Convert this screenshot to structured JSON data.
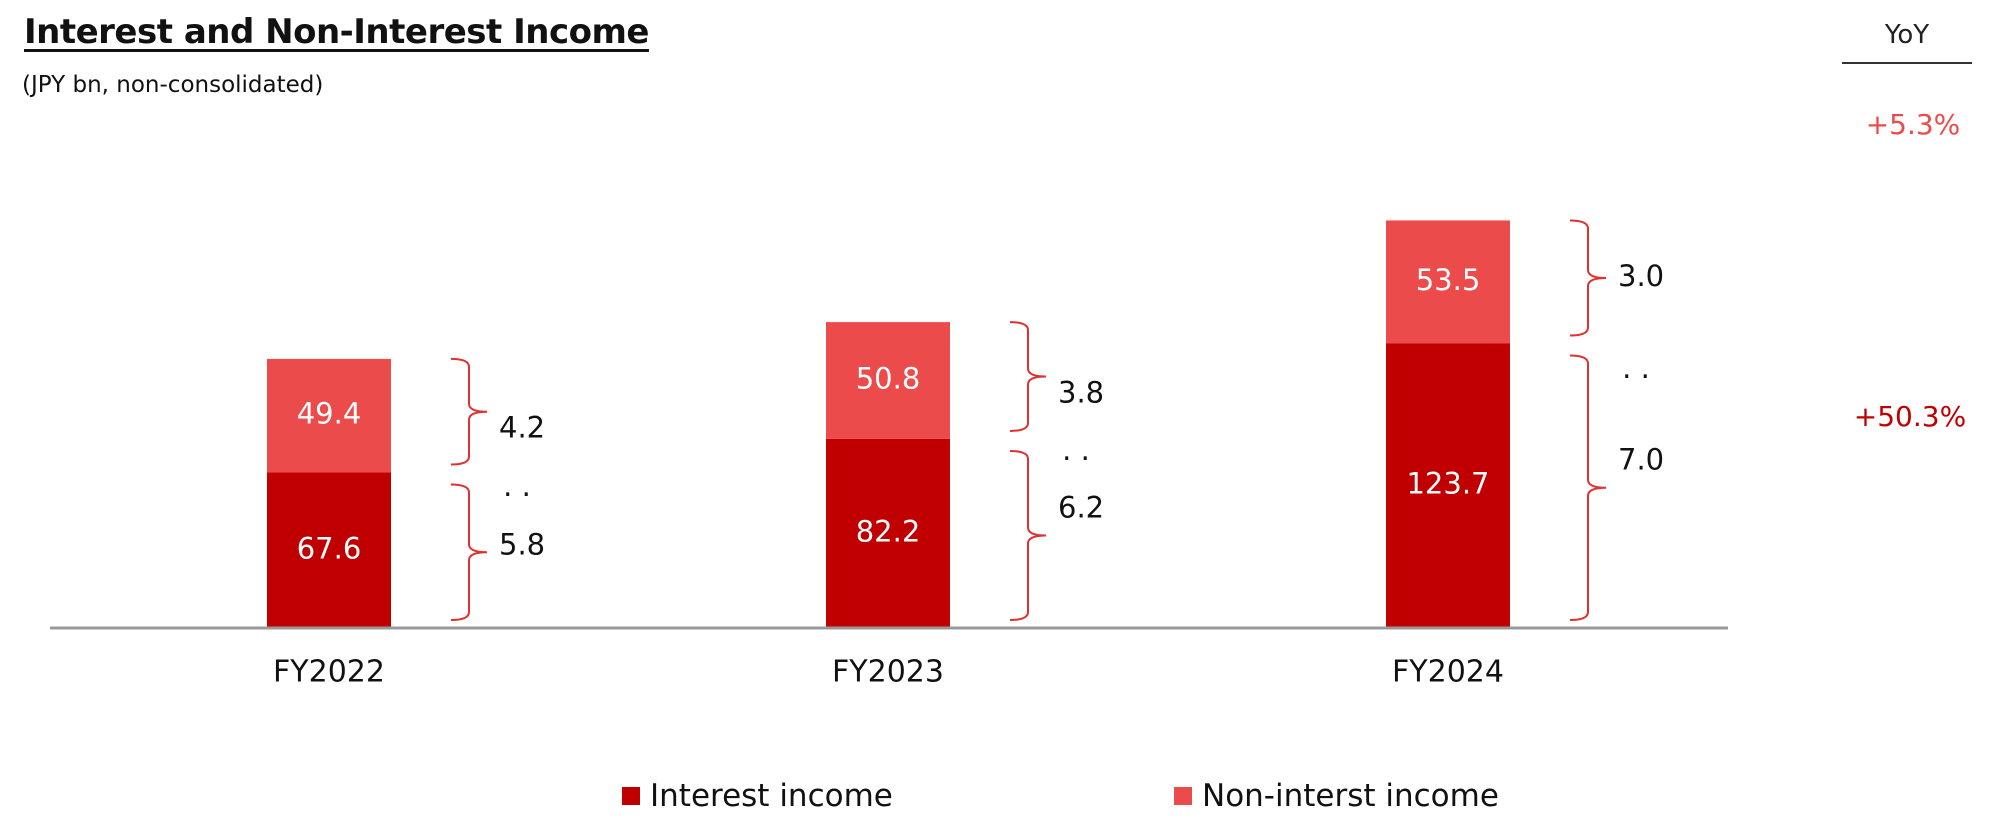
{
  "title": "Interest and Non-Interest Income",
  "subtitle": "(JPY bn, non-consolidated)",
  "yoy_header": "YoY",
  "colors": {
    "interest": "#C00000",
    "non_interest": "#EC4B4B",
    "bracket": "#E03030",
    "axis": "#999999"
  },
  "chart_data": {
    "type": "bar",
    "stacked": true,
    "title": "Interest and Non-Interest Income",
    "subtitle": "(JPY bn, non-consolidated)",
    "categories": [
      "FY2022",
      "FY2023",
      "FY2024"
    ],
    "series": [
      {
        "name": "Interest income",
        "values": [
          67.6,
          82.2,
          123.7
        ]
      },
      {
        "name": "Non-interst income",
        "values": [
          49.4,
          50.8,
          53.5
        ]
      }
    ],
    "bracket_annotations": [
      {
        "category": "FY2022",
        "non_interest": "4.2",
        "interest": "5.8",
        "separator": ". ."
      },
      {
        "category": "FY2023",
        "non_interest": "3.8",
        "interest": "6.2",
        "separator": ". ."
      },
      {
        "category": "FY2024",
        "non_interest": "3.0",
        "interest": "7.0",
        "separator": ". ."
      }
    ],
    "yoy": {
      "non_interest": "+5.3%",
      "interest": "+50.3%"
    },
    "ylim": [
      0,
      180
    ],
    "legend": {
      "position": "bottom",
      "entries": [
        "Interest income",
        "Non-interst income"
      ]
    }
  }
}
